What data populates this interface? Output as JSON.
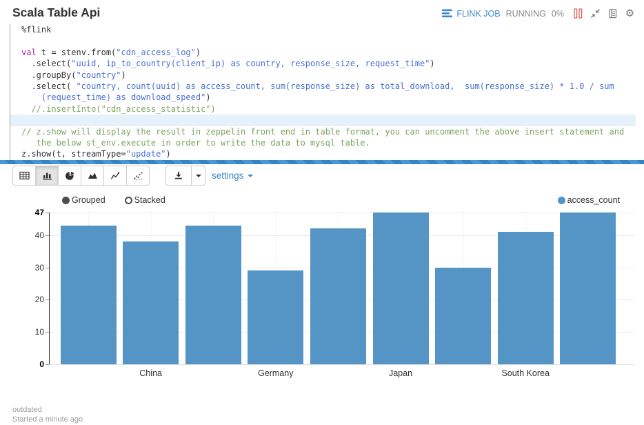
{
  "header": {
    "title": "Scala Table Api",
    "flink_job": "FLINK JOB",
    "status": "RUNNING",
    "progress": "0%",
    "link_color": "#3b87c8",
    "abort_color": "#d9534f"
  },
  "code": {
    "colors": {
      "plain": "#333333",
      "keyword": "#a626a4",
      "string": "#4a6fd4",
      "comment": "#7aa45e"
    },
    "lines": [
      {
        "segs": [
          [
            "%flink",
            "plain"
          ]
        ]
      },
      {
        "segs": []
      },
      {
        "segs": [
          [
            "val",
            "keyword"
          ],
          [
            " t = stenv.from(",
            "plain"
          ],
          [
            "\"cdn_access_log\"",
            "string"
          ],
          [
            ")",
            "plain"
          ]
        ]
      },
      {
        "segs": [
          [
            "  .select(",
            "plain"
          ],
          [
            "\"uuid, ip_to_country(client_ip) as country, response_size, request_time\"",
            "string"
          ],
          [
            ")",
            "plain"
          ]
        ]
      },
      {
        "segs": [
          [
            "  .groupBy(",
            "plain"
          ],
          [
            "\"country\"",
            "string"
          ],
          [
            ")",
            "plain"
          ]
        ]
      },
      {
        "segs": [
          [
            "  .select( ",
            "plain"
          ],
          [
            "\"country, count(uuid) as access_count, sum(response_size) as total_download,  sum(response_size) * 1.0 / sum",
            "string"
          ]
        ]
      },
      {
        "segs": [
          [
            "    ",
            "plain"
          ],
          [
            "(request_time) as download_speed\"",
            "string"
          ],
          [
            ")",
            "plain"
          ]
        ]
      },
      {
        "segs": [
          [
            "  //.insertInto(\"cdn_access_statistic\")",
            "comment"
          ]
        ]
      },
      {
        "segs": [],
        "highlight": true
      },
      {
        "segs": [
          [
            "// z.show will display the result in zeppelin front end in table format, you can uncomment the above insert statement and",
            "comment"
          ]
        ]
      },
      {
        "segs": [
          [
            "   the below st_env.execute in order to write the data to mysql table.",
            "comment"
          ]
        ]
      },
      {
        "segs": [
          [
            "z.show(t, streamType=",
            "plain"
          ],
          [
            "\"update\"",
            "string"
          ],
          [
            ")",
            "plain"
          ]
        ]
      }
    ]
  },
  "toolbar": {
    "chart_types": [
      "table",
      "bar",
      "pie",
      "area",
      "line",
      "scatter"
    ],
    "selected": "bar",
    "settings_label": "settings"
  },
  "chart_data": {
    "type": "bar",
    "series": [
      {
        "name": "access_count",
        "color": "#5495c6",
        "values": [
          43,
          38,
          43,
          29,
          42,
          47,
          30,
          41,
          47
        ]
      }
    ],
    "x_tick_labels": [
      {
        "bar_index": 1,
        "label": "China"
      },
      {
        "bar_index": 3,
        "label": "Germany"
      },
      {
        "bar_index": 5,
        "label": "Japan"
      },
      {
        "bar_index": 7,
        "label": "South Korea"
      }
    ],
    "y_ticks": [
      0,
      10,
      20,
      30,
      40,
      47
    ],
    "y_bold_ticks": [
      0,
      47
    ],
    "ylim": [
      0,
      47
    ],
    "grid": true,
    "controls": [
      {
        "label": "Grouped",
        "active": true
      },
      {
        "label": "Stacked",
        "active": false
      }
    ],
    "legend": [
      {
        "label": "access_count",
        "color": "#5495c6"
      }
    ],
    "legend_position": "top-right"
  },
  "footer": {
    "status_text": "outdated",
    "started_text": "Started a minute ago"
  }
}
